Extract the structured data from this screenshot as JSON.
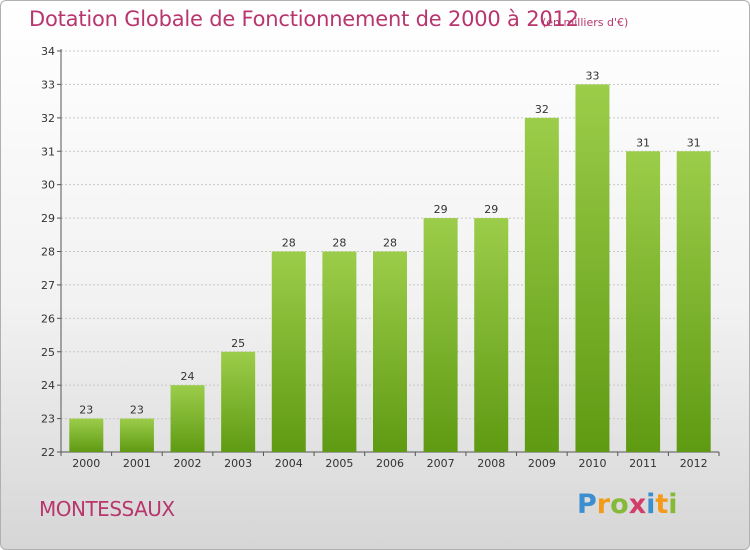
{
  "chart_data": {
    "type": "bar",
    "title": "Dotation Globale de Fonctionnement de 2000 à 2012",
    "subtitle": "(en milliers d'€)",
    "categories": [
      "2000",
      "2001",
      "2002",
      "2003",
      "2004",
      "2005",
      "2006",
      "2007",
      "2008",
      "2009",
      "2010",
      "2011",
      "2012"
    ],
    "values": [
      23,
      23,
      24,
      25,
      28,
      28,
      28,
      29,
      29,
      32,
      33,
      31,
      31
    ],
    "ylim": [
      22,
      34
    ],
    "yticks": [
      22,
      23,
      24,
      25,
      26,
      27,
      28,
      29,
      30,
      31,
      32,
      33,
      34
    ],
    "grid": true,
    "bar_color_top": "#9ccd4a",
    "bar_color_bottom": "#5f9a13"
  },
  "footer": {
    "commune": "MONTESSAUX",
    "logo_text": "Proxiti"
  },
  "colors": {
    "title": "#b8366d"
  }
}
